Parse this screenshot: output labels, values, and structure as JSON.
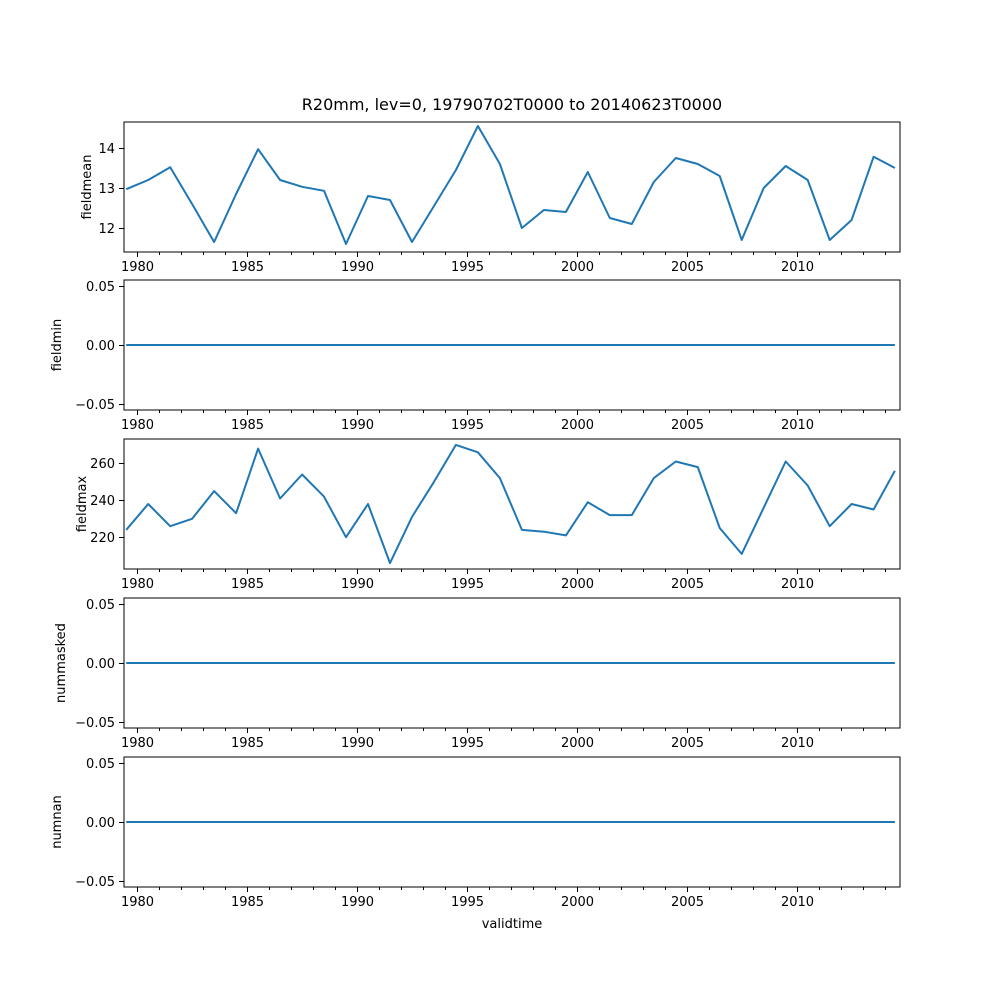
{
  "title": "R20mm, lev=0, 19790702T0000 to 20140623T0000",
  "xlabel": "validtime",
  "colors": {
    "line": "#1f77b4",
    "axis": "#000000",
    "background": "#ffffff"
  },
  "chart_data": {
    "type": "line",
    "title": "R20mm, lev=0, 19790702T0000 to 20140623T0000",
    "xlabel": "validtime",
    "grid": false,
    "legend": "none",
    "xlim": [
      1979.4,
      2014.7
    ],
    "xticks": [
      1980,
      1985,
      1990,
      1995,
      2000,
      2005,
      2010
    ],
    "xtick_labels": [
      "1980",
      "1985",
      "1990",
      "1995",
      "2000",
      "2005",
      "2010"
    ],
    "minor_xticks_every_year": true,
    "x": [
      1979.5,
      1980.5,
      1981.5,
      1982.5,
      1983.5,
      1984.5,
      1985.5,
      1986.5,
      1987.5,
      1988.5,
      1989.5,
      1990.5,
      1991.5,
      1992.5,
      1993.5,
      1994.5,
      1995.5,
      1996.5,
      1997.5,
      1998.5,
      1999.5,
      2000.5,
      2001.5,
      2002.5,
      2003.5,
      2004.5,
      2005.5,
      2006.5,
      2007.5,
      2008.5,
      2009.5,
      2010.5,
      2011.5,
      2012.5,
      2013.5,
      2014.47
    ],
    "subplots": [
      {
        "ylabel": "fieldmean",
        "ylim": [
          11.4,
          14.65
        ],
        "yticks": [
          12,
          13,
          14
        ],
        "ytick_labels": [
          "12",
          "13",
          "14"
        ],
        "values": [
          12.97,
          13.2,
          13.52,
          12.6,
          11.65,
          12.85,
          13.97,
          13.2,
          13.03,
          12.93,
          11.6,
          12.8,
          12.7,
          11.65,
          12.55,
          13.45,
          14.55,
          13.6,
          12.0,
          12.45,
          12.4,
          13.4,
          12.25,
          12.1,
          13.15,
          13.75,
          13.6,
          13.3,
          11.7,
          13.0,
          13.55,
          13.2,
          11.7,
          12.2,
          13.78,
          13.5
        ]
      },
      {
        "ylabel": "fieldmin",
        "ylim": [
          -0.055,
          0.055
        ],
        "yticks": [
          -0.05,
          0.0,
          0.05
        ],
        "ytick_labels": [
          "−0.05",
          "0.00",
          "0.05"
        ],
        "constant_value": 0,
        "x_range": [
          1979.5,
          2014.47
        ]
      },
      {
        "ylabel": "fieldmax",
        "ylim": [
          202.8,
          273.2
        ],
        "yticks": [
          220,
          240,
          260
        ],
        "ytick_labels": [
          "220",
          "240",
          "260"
        ],
        "values": [
          224,
          238,
          226,
          230,
          245,
          233,
          268,
          241,
          254,
          242,
          220,
          238,
          206,
          231,
          250,
          270,
          266,
          252,
          224,
          223,
          221,
          239,
          232,
          232,
          252,
          261,
          258,
          225,
          211,
          236,
          261,
          248,
          226,
          238,
          235,
          256
        ]
      },
      {
        "ylabel": "nummasked",
        "ylim": [
          -0.055,
          0.055
        ],
        "yticks": [
          -0.05,
          0.0,
          0.05
        ],
        "ytick_labels": [
          "−0.05",
          "0.00",
          "0.05"
        ],
        "constant_value": 0,
        "x_range": [
          1979.5,
          2014.47
        ]
      },
      {
        "ylabel": "numnan",
        "ylim": [
          -0.055,
          0.055
        ],
        "yticks": [
          -0.05,
          0.0,
          0.05
        ],
        "ytick_labels": [
          "−0.05",
          "0.00",
          "0.05"
        ],
        "constant_value": 0,
        "x_range": [
          1979.5,
          2014.47
        ]
      }
    ]
  }
}
